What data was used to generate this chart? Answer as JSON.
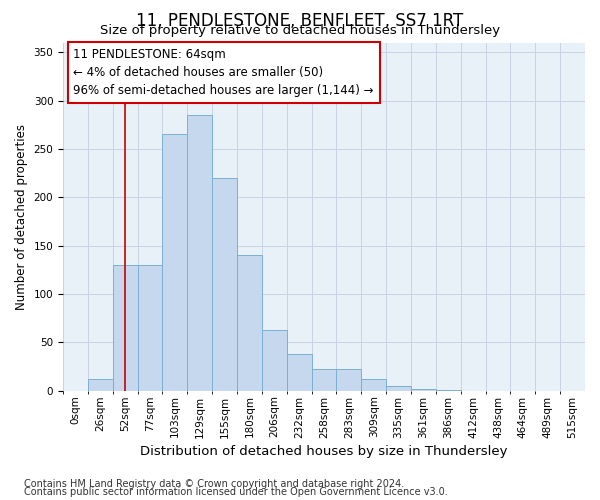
{
  "title": "11, PENDLESTONE, BENFLEET, SS7 1RT",
  "subtitle": "Size of property relative to detached houses in Thundersley",
  "xlabel": "Distribution of detached houses by size in Thundersley",
  "ylabel": "Number of detached properties",
  "categories": [
    "0sqm",
    "26sqm",
    "52sqm",
    "77sqm",
    "103sqm",
    "129sqm",
    "155sqm",
    "180sqm",
    "206sqm",
    "232sqm",
    "258sqm",
    "283sqm",
    "309sqm",
    "335sqm",
    "361sqm",
    "386sqm",
    "412sqm",
    "438sqm",
    "464sqm",
    "489sqm",
    "515sqm"
  ],
  "values": [
    0,
    12,
    130,
    130,
    265,
    285,
    220,
    140,
    63,
    38,
    22,
    22,
    12,
    5,
    2,
    1,
    0,
    0,
    0,
    0,
    0
  ],
  "bar_color": "#c5d8ee",
  "bar_edge_color": "#7aafd4",
  "bar_linewidth": 0.7,
  "ylim": [
    0,
    360
  ],
  "yticks": [
    0,
    50,
    100,
    150,
    200,
    250,
    300,
    350
  ],
  "red_line_x": 2.5,
  "annotation_line1": "11 PENDLESTONE: 64sqm",
  "annotation_line2": "← 4% of detached houses are smaller (50)",
  "annotation_line3": "96% of semi-detached houses are larger (1,144) →",
  "annotation_box_color": "#cc0000",
  "footer1": "Contains HM Land Registry data © Crown copyright and database right 2024.",
  "footer2": "Contains public sector information licensed under the Open Government Licence v3.0.",
  "bg_color": "#e8f0f8",
  "grid_color": "#c8d4e4",
  "title_fontsize": 12,
  "subtitle_fontsize": 9.5,
  "xlabel_fontsize": 9.5,
  "ylabel_fontsize": 8.5,
  "tick_fontsize": 7.5,
  "annotation_fontsize": 8.5,
  "footer_fontsize": 7
}
